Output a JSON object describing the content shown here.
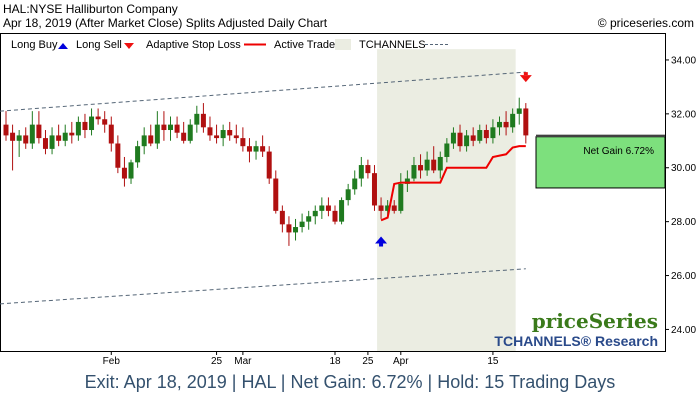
{
  "header": {
    "title": "HAL:NYSE Halliburton Company",
    "subtitle": "Apr 18, 2019 (After Market Close)  Splits Adjusted Daily Chart",
    "copyright": "© priceseries.com"
  },
  "legend": {
    "long_buy": "Long Buy",
    "long_sell": "Long Sell",
    "adaptive_stop": "Adaptive Stop Loss",
    "active_trade": "Active Trade",
    "tchannels": "TCHANNELS"
  },
  "net_gain_label": "Net Gain 6.72%",
  "branding": {
    "logo": "priceSeries",
    "research": "TCHANNELS® Research"
  },
  "footer": "Exit: Apr 18, 2019 | HAL | Net Gain: 6.72% | Hold: 15 Trading Days",
  "colors": {
    "up_candle": "#1f7a1f",
    "down_candle": "#b01010",
    "stop_loss": "#ee0000",
    "active_trade": "#ebede2",
    "net_gain_fill": "#7de07d",
    "buy_arrow": "#0000dd",
    "sell_arrow": "#ee1111",
    "footer_text": "#34516e",
    "logo_green": "#3a7a1a",
    "research_blue": "#2a4a8a"
  },
  "chart_data": {
    "type": "candlestick",
    "y_axis": {
      "range": [
        23.2,
        35.0
      ],
      "ticks": [
        "24.00",
        "26.00",
        "28.00",
        "30.00",
        "32.00",
        "34.00"
      ],
      "position": "right"
    },
    "x_axis": {
      "ticks": [
        {
          "label": "Feb",
          "index": 16
        },
        {
          "label": "25",
          "index": 32
        },
        {
          "label": "Mar",
          "index": 36
        },
        {
          "label": "18",
          "index": 50
        },
        {
          "label": "25",
          "index": 55
        },
        {
          "label": "Apr",
          "index": 60
        },
        {
          "label": "15",
          "index": 74
        }
      ]
    },
    "bars": [
      [
        31.6,
        32.1,
        31.0,
        31.2
      ],
      [
        31.3,
        31.6,
        29.9,
        31.0
      ],
      [
        31.0,
        31.4,
        30.4,
        31.2
      ],
      [
        31.2,
        31.5,
        30.7,
        30.9
      ],
      [
        30.9,
        32.1,
        30.7,
        31.6
      ],
      [
        31.6,
        32.1,
        30.9,
        31.1
      ],
      [
        31.1,
        31.4,
        30.5,
        30.7
      ],
      [
        30.7,
        31.5,
        30.5,
        31.2
      ],
      [
        31.2,
        31.6,
        30.8,
        31.0
      ],
      [
        31.0,
        31.6,
        30.8,
        31.3
      ],
      [
        31.3,
        31.7,
        30.9,
        31.2
      ],
      [
        31.2,
        31.9,
        31.0,
        31.7
      ],
      [
        31.7,
        32.0,
        31.1,
        31.4
      ],
      [
        31.4,
        32.2,
        31.2,
        31.9
      ],
      [
        31.9,
        32.2,
        31.6,
        31.8
      ],
      [
        31.8,
        32.1,
        31.3,
        31.6
      ],
      [
        31.6,
        31.9,
        30.6,
        30.9
      ],
      [
        30.9,
        31.2,
        29.8,
        30.0
      ],
      [
        30.0,
        30.4,
        29.3,
        29.6
      ],
      [
        29.6,
        30.3,
        29.4,
        30.2
      ],
      [
        30.2,
        31.0,
        30.0,
        30.8
      ],
      [
        30.8,
        31.5,
        30.5,
        31.2
      ],
      [
        31.2,
        31.6,
        30.8,
        30.9
      ],
      [
        30.9,
        32.1,
        30.7,
        31.6
      ],
      [
        31.6,
        32.1,
        31.0,
        31.4
      ],
      [
        31.4,
        31.9,
        31.0,
        31.6
      ],
      [
        31.6,
        31.9,
        31.1,
        31.3
      ],
      [
        31.3,
        31.7,
        30.9,
        31.0
      ],
      [
        31.0,
        31.8,
        30.9,
        31.6
      ],
      [
        31.6,
        32.3,
        31.3,
        32.0
      ],
      [
        32.0,
        32.4,
        31.3,
        31.5
      ],
      [
        31.5,
        31.9,
        31.0,
        31.2
      ],
      [
        31.2,
        31.6,
        30.9,
        31.1
      ],
      [
        31.1,
        31.6,
        30.8,
        31.4
      ],
      [
        31.4,
        31.7,
        31.0,
        31.2
      ],
      [
        31.2,
        31.6,
        30.9,
        31.1
      ],
      [
        31.1,
        31.5,
        30.6,
        30.8
      ],
      [
        30.8,
        31.1,
        30.2,
        30.6
      ],
      [
        30.6,
        31.0,
        30.3,
        30.8
      ],
      [
        30.8,
        31.2,
        30.4,
        30.6
      ],
      [
        30.6,
        30.8,
        29.4,
        29.6
      ],
      [
        29.6,
        29.9,
        28.3,
        28.4
      ],
      [
        28.4,
        28.6,
        27.6,
        27.9
      ],
      [
        27.9,
        28.2,
        27.1,
        27.6
      ],
      [
        27.6,
        28.1,
        27.3,
        27.8
      ],
      [
        27.8,
        28.3,
        27.6,
        28.0
      ],
      [
        28.0,
        28.4,
        27.7,
        28.2
      ],
      [
        28.2,
        28.6,
        27.9,
        28.4
      ],
      [
        28.4,
        28.9,
        28.1,
        28.6
      ],
      [
        28.6,
        28.9,
        28.2,
        28.4
      ],
      [
        28.4,
        28.6,
        27.9,
        28.0
      ],
      [
        28.0,
        28.9,
        27.9,
        28.8
      ],
      [
        28.8,
        29.4,
        28.6,
        29.2
      ],
      [
        29.2,
        29.9,
        29.0,
        29.6
      ],
      [
        29.6,
        30.4,
        29.3,
        30.1
      ],
      [
        30.1,
        30.3,
        29.6,
        29.8
      ],
      [
        29.8,
        30.1,
        28.4,
        28.6
      ],
      [
        28.6,
        28.9,
        28.1,
        28.4
      ],
      [
        28.4,
        28.8,
        28.2,
        28.6
      ],
      [
        28.6,
        28.8,
        28.3,
        28.4
      ],
      [
        28.4,
        29.8,
        28.3,
        29.4
      ],
      [
        29.4,
        29.9,
        29.1,
        29.6
      ],
      [
        29.6,
        30.4,
        29.5,
        30.1
      ],
      [
        30.1,
        30.5,
        29.6,
        29.9
      ],
      [
        29.9,
        30.6,
        29.7,
        30.3
      ],
      [
        30.3,
        30.8,
        29.8,
        29.9
      ],
      [
        29.9,
        30.6,
        29.6,
        30.4
      ],
      [
        30.4,
        31.1,
        30.2,
        30.9
      ],
      [
        30.9,
        31.5,
        30.7,
        31.3
      ],
      [
        31.3,
        31.6,
        30.6,
        30.8
      ],
      [
        30.8,
        31.4,
        30.6,
        31.2
      ],
      [
        31.2,
        31.5,
        30.8,
        31.0
      ],
      [
        31.0,
        31.6,
        30.9,
        31.4
      ],
      [
        31.4,
        31.6,
        30.9,
        31.1
      ],
      [
        31.1,
        31.8,
        30.9,
        31.5
      ],
      [
        31.5,
        31.9,
        31.2,
        31.7
      ],
      [
        31.7,
        32.1,
        31.2,
        31.5
      ],
      [
        31.5,
        32.2,
        31.3,
        32.0
      ],
      [
        32.0,
        32.6,
        31.6,
        32.2
      ],
      [
        32.2,
        32.4,
        30.9,
        31.2
      ]
    ],
    "adaptive_stop_loss": [
      [
        57,
        28.05
      ],
      [
        58,
        28.15
      ],
      [
        59,
        29.4
      ],
      [
        60,
        29.45
      ],
      [
        61,
        29.45
      ],
      [
        62,
        29.45
      ],
      [
        63,
        29.45
      ],
      [
        64,
        29.45
      ],
      [
        65,
        29.45
      ],
      [
        66,
        29.45
      ],
      [
        67,
        30.0
      ],
      [
        68,
        30.0
      ],
      [
        69,
        30.0
      ],
      [
        70,
        30.0
      ],
      [
        71,
        30.0
      ],
      [
        72,
        30.0
      ],
      [
        73,
        30.0
      ],
      [
        74,
        30.4
      ],
      [
        75,
        30.45
      ],
      [
        76,
        30.5
      ],
      [
        77,
        30.75
      ],
      [
        78,
        30.8
      ],
      [
        79,
        30.8
      ]
    ],
    "tchannel_upper": [
      [
        0,
        32.1
      ],
      [
        79,
        33.55
      ]
    ],
    "tchannel_lower": [
      [
        0,
        24.95
      ],
      [
        79,
        26.25
      ]
    ],
    "active_trade": {
      "start": 57,
      "end": 77,
      "y_top": 34.4
    },
    "net_gain_zone": {
      "from": 29.25,
      "to": 31.15
    },
    "entry_marker": {
      "index": 57,
      "value": 27.3
    },
    "exit_marker": {
      "index": 79,
      "value": 33.4
    }
  }
}
